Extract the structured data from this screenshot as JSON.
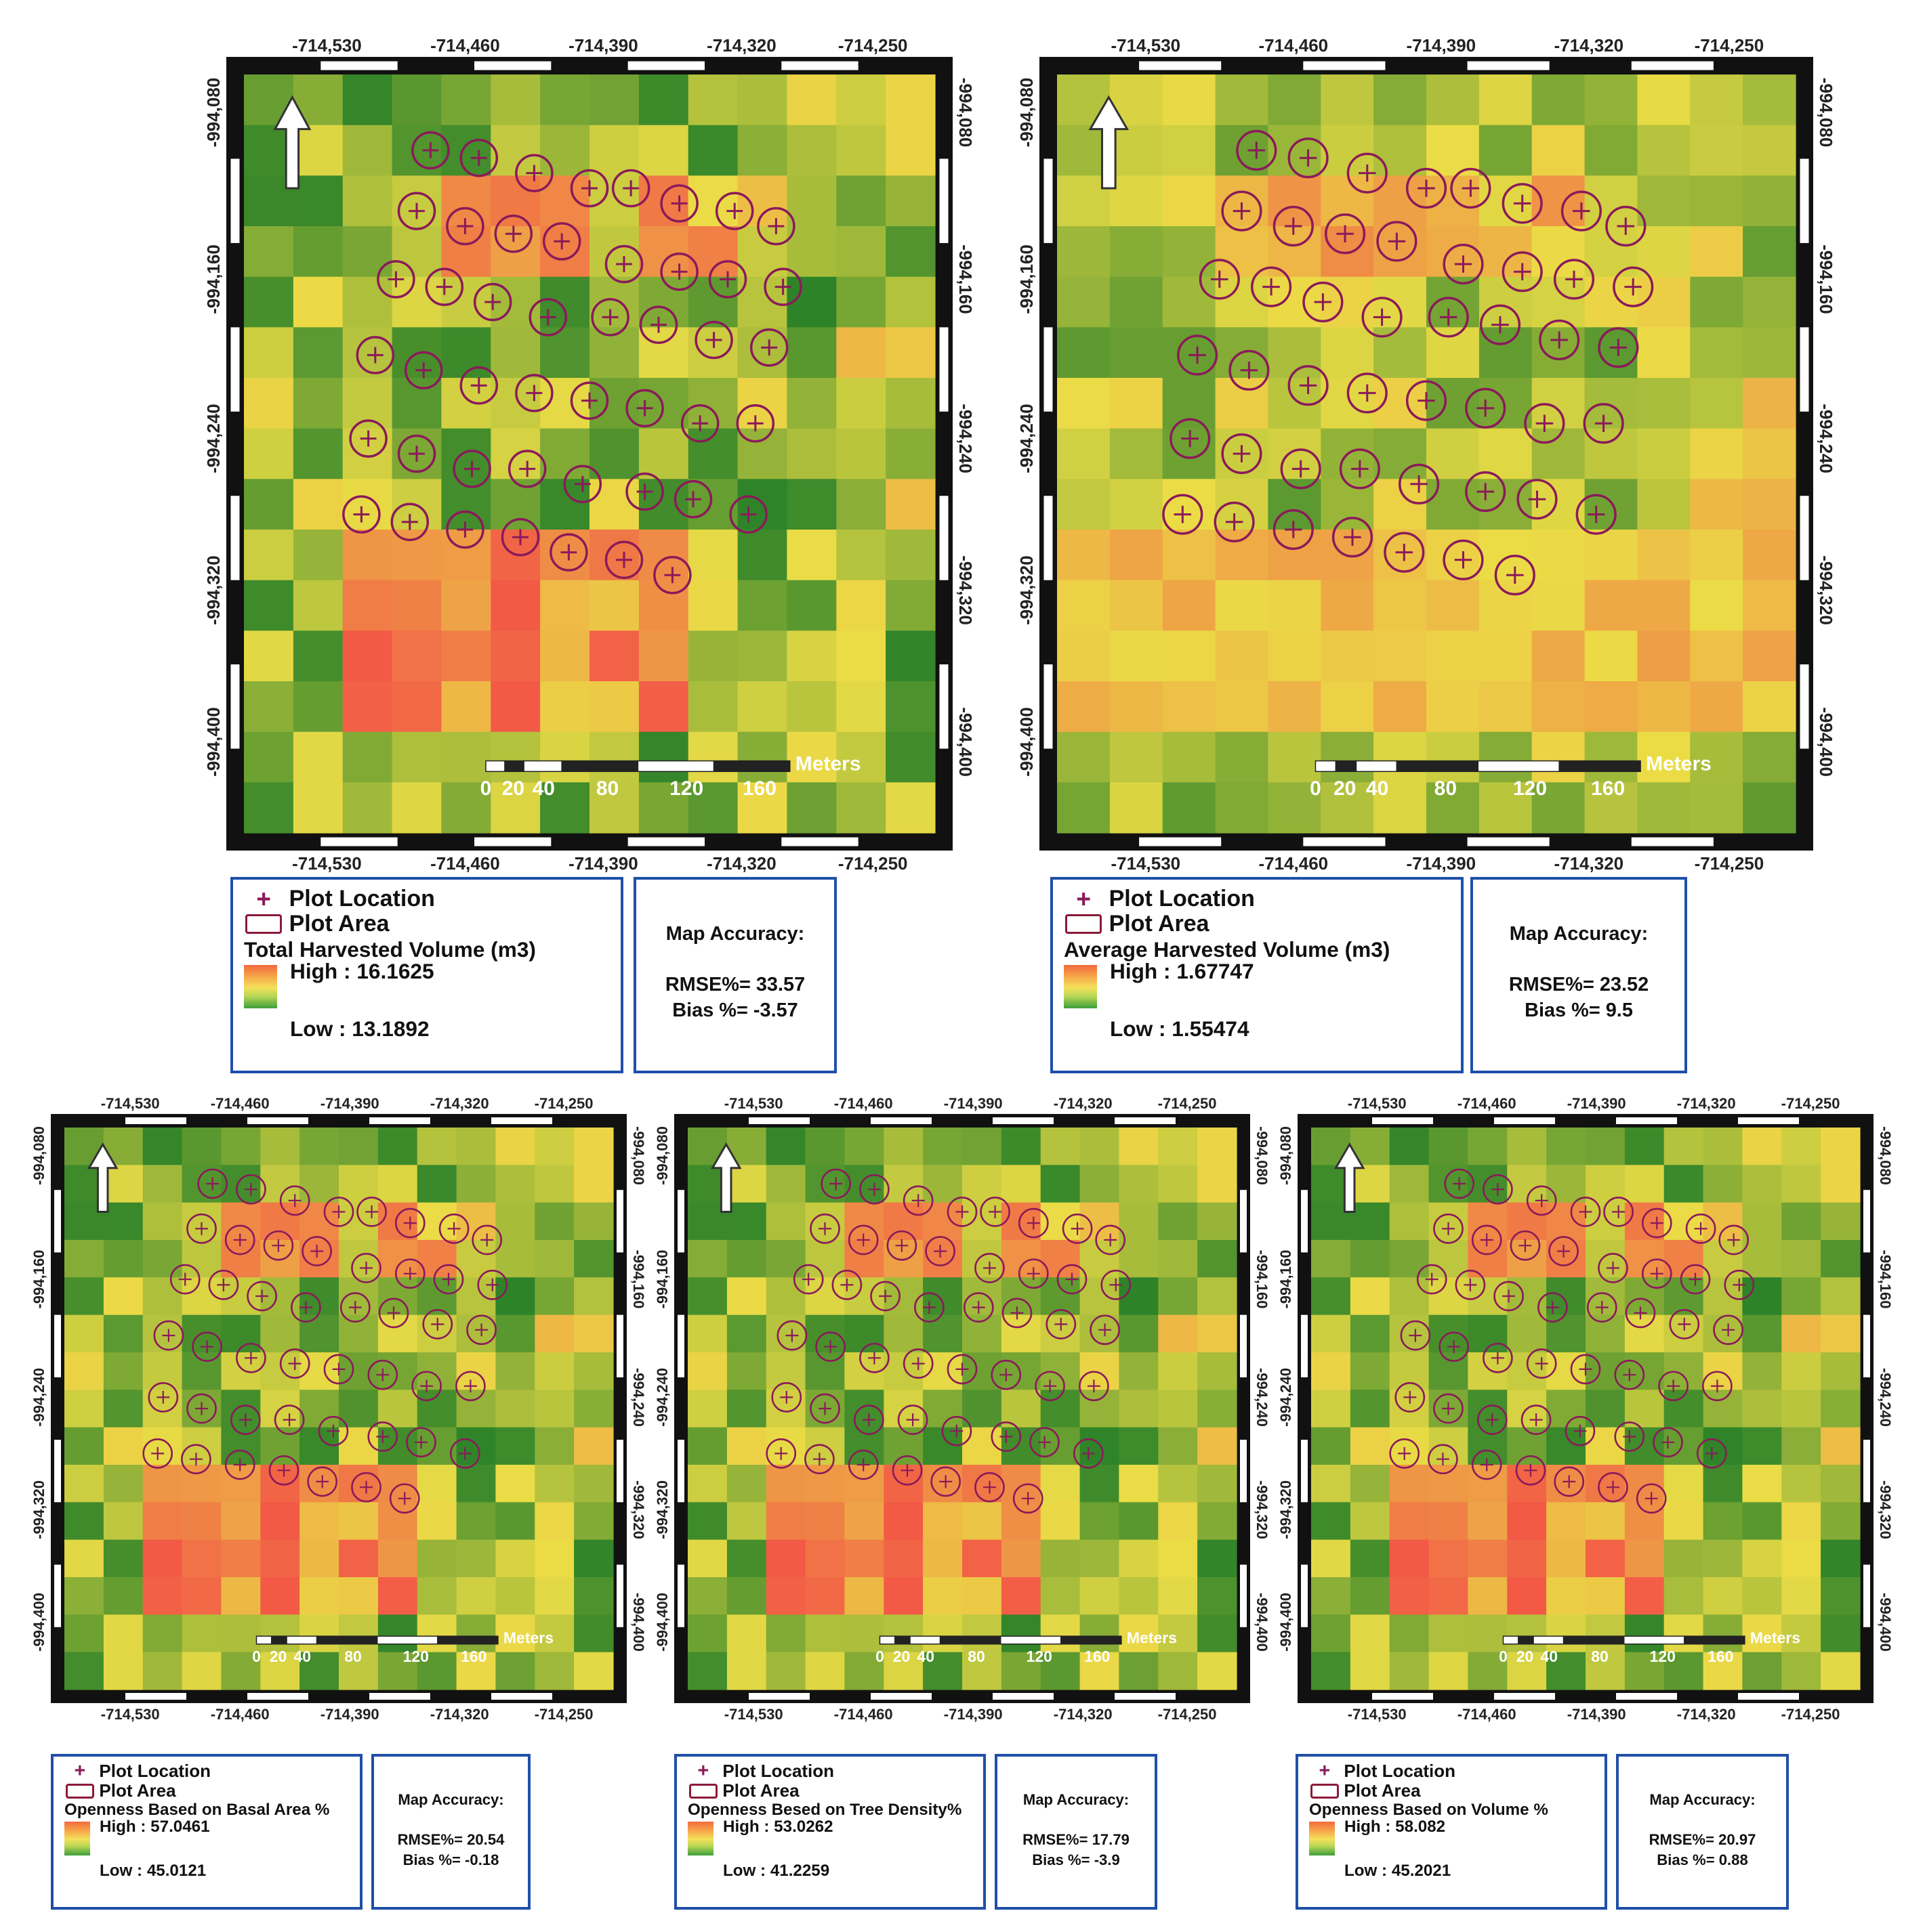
{
  "axes": {
    "x_ticks": [
      "-714,530",
      "-714,460",
      "-714,390",
      "-714,320",
      "-714,250"
    ],
    "y_ticks": [
      "-994,080",
      "-994,160",
      "-994,240",
      "-994,320",
      "-994,400"
    ]
  },
  "scale_bar": {
    "unit_label": "Meters",
    "labels": [
      "0",
      "20",
      "40",
      "80",
      "120",
      "160"
    ]
  },
  "colors": {
    "plot_marker": "#8b1a5a",
    "frame_border": "#1f4fa8",
    "high": "#f26a3d",
    "low": "#3e9e3a"
  },
  "icons": {
    "north_arrow": "north-arrow-icon",
    "plot_location": "plus-icon"
  },
  "panels": [
    {
      "id": "total-harvested-volume",
      "legend": {
        "plot_location_label": "Plot Location",
        "plot_area_label": "Plot Area",
        "layer_title": "Total Harvested Volume (m3)",
        "high_label": "High : 16.1625",
        "low_label": "Low : 13.1892",
        "high_value": 16.1625,
        "low_value": 13.1892
      },
      "accuracy": {
        "title": "Map Accuracy:",
        "rmse_label": "RMSE%= 33.57",
        "bias_label": "Bias %= -3.57",
        "rmse_percent": 33.57,
        "bias_percent": -3.57
      }
    },
    {
      "id": "average-harvested-volume",
      "legend": {
        "plot_location_label": "Plot Location",
        "plot_area_label": "Plot Area",
        "layer_title": "Average Harvested Volume (m3)",
        "high_label": "High : 1.67747",
        "low_label": "Low : 1.55474",
        "high_value": 1.67747,
        "low_value": 1.55474
      },
      "accuracy": {
        "title": "Map Accuracy:",
        "rmse_label": "RMSE%= 23.52",
        "bias_label": "Bias %= 9.5",
        "rmse_percent": 23.52,
        "bias_percent": 9.5
      }
    },
    {
      "id": "openness-basal-area",
      "legend": {
        "plot_location_label": "Plot Location",
        "plot_area_label": "Plot Area",
        "layer_title": "Openness Based on Basal Area %",
        "high_label": "High : 57.0461",
        "low_label": "Low : 45.0121",
        "high_value": 57.0461,
        "low_value": 45.0121
      },
      "accuracy": {
        "title": "Map Accuracy:",
        "rmse_label": "RMSE%= 20.54",
        "bias_label": "Bias %= -0.18",
        "rmse_percent": 20.54,
        "bias_percent": -0.18
      }
    },
    {
      "id": "openness-tree-density",
      "legend": {
        "plot_location_label": "Plot Location",
        "plot_area_label": "Plot Area",
        "layer_title": "Openness Besed on Tree Density%",
        "high_label": "High : 53.0262",
        "low_label": "Low : 41.2259",
        "high_value": 53.0262,
        "low_value": 41.2259
      },
      "accuracy": {
        "title": "Map Accuracy:",
        "rmse_label": "RMSE%= 17.79",
        "bias_label": "Bias %= -3.9",
        "rmse_percent": 17.79,
        "bias_percent": -3.9
      }
    },
    {
      "id": "openness-volume",
      "legend": {
        "plot_location_label": "Plot Location",
        "plot_area_label": "Plot Area",
        "layer_title": "Openness Based on Volume %",
        "high_label": "High : 58.082",
        "low_label": "Low : 45.2021",
        "high_value": 58.082,
        "low_value": 45.2021
      },
      "accuracy": {
        "title": "Map Accuracy:",
        "rmse_label": "RMSE%= 20.97",
        "bias_label": "Bias %= 0.88",
        "rmse_percent": 20.97,
        "bias_percent": 0.88
      }
    }
  ]
}
